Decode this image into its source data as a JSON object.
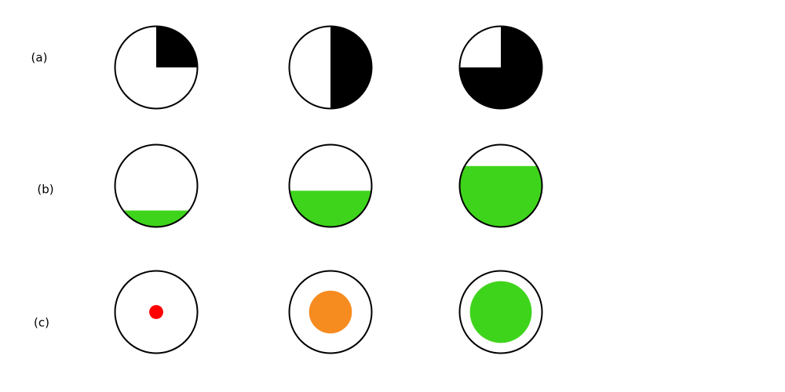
{
  "colors": {
    "outline": "#000000",
    "pie_fill": "#000000",
    "liquid": "#3fd41c",
    "dot_small": "#ff0000",
    "dot_medium": "#f68b1f",
    "dot_large": "#3fd41c",
    "background": "#ffffff"
  },
  "rows": [
    {
      "label": "(a)",
      "kind": "pie",
      "items": [
        {
          "fraction": 0.25
        },
        {
          "fraction": 0.5
        },
        {
          "fraction": 0.75
        }
      ]
    },
    {
      "label": "(b)",
      "kind": "fill-level",
      "items": [
        {
          "fraction": 0.2
        },
        {
          "fraction": 0.44
        },
        {
          "fraction": 0.74
        }
      ]
    },
    {
      "label": "(c)",
      "kind": "dot-size",
      "items": [
        {
          "fraction": 0.17,
          "color_key": "dot_small"
        },
        {
          "fraction": 0.52,
          "color_key": "dot_medium"
        },
        {
          "fraction": 0.75,
          "color_key": "dot_large"
        }
      ]
    }
  ]
}
